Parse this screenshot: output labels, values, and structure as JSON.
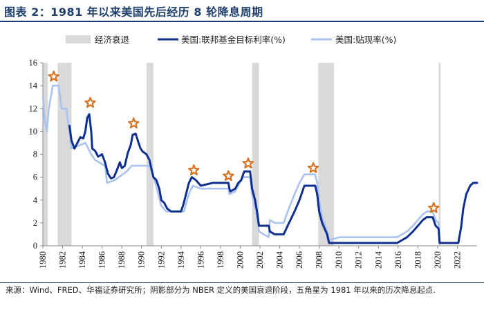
{
  "header": {
    "title": "图表 2：1981 年以来美国先后经历 8 轮降息周期"
  },
  "source": {
    "text": "来源：Wind、FRED、华福证券研究所；阴影部分为 NBER 定义的美国衰退阶段，五角星为 1981 年以来的历次降息起点."
  },
  "colors": {
    "fed_funds": "#0f2f8f",
    "discount": "#a9c2f0",
    "recession": "#d9d9d9",
    "star_fill": "#ffffff",
    "star_stroke": "#d9701f"
  },
  "chart_data": {
    "type": "line",
    "xlim": [
      1980,
      2024
    ],
    "ylim": [
      0,
      16
    ],
    "x_ticks": [
      "1980",
      "1982",
      "1984",
      "1986",
      "1988",
      "1990",
      "1992",
      "1994",
      "1996",
      "1998",
      "2000",
      "2002",
      "2004",
      "2006",
      "2008",
      "2010",
      "2012",
      "2014",
      "2016",
      "2018",
      "2020",
      "2022"
    ],
    "y_ticks": [
      "0",
      "2",
      "4",
      "6",
      "8",
      "10",
      "12",
      "14",
      "16"
    ],
    "legend": [
      {
        "label": "经济衰退",
        "kind": "recession"
      },
      {
        "label": "美国:联邦基金目标利率(%)",
        "kind": "fed_funds"
      },
      {
        "label": "美国:贴现率(%)",
        "kind": "discount"
      }
    ],
    "legend_position": "top",
    "grid": false,
    "recessions": [
      [
        1980.0,
        1980.5
      ],
      [
        1981.5,
        1982.9
      ],
      [
        1990.5,
        1991.2
      ],
      [
        2001.2,
        2001.9
      ],
      [
        2007.9,
        2009.5
      ],
      [
        2020.1,
        2020.3
      ]
    ],
    "series": [
      {
        "name": "美国:联邦基金目标利率(%)",
        "points": [
          [
            1982.7,
            10.5
          ],
          [
            1982.9,
            9.2
          ],
          [
            1983.2,
            8.5
          ],
          [
            1983.5,
            9.0
          ],
          [
            1983.8,
            9.5
          ],
          [
            1984.1,
            9.4
          ],
          [
            1984.3,
            10.0
          ],
          [
            1984.5,
            11.2
          ],
          [
            1984.7,
            11.5
          ],
          [
            1984.9,
            10.0
          ],
          [
            1985.0,
            8.5
          ],
          [
            1985.3,
            8.3
          ],
          [
            1985.6,
            7.8
          ],
          [
            1986.0,
            8.0
          ],
          [
            1986.3,
            7.3
          ],
          [
            1986.6,
            6.3
          ],
          [
            1986.9,
            5.9
          ],
          [
            1987.2,
            6.0
          ],
          [
            1987.5,
            6.6
          ],
          [
            1987.8,
            7.3
          ],
          [
            1988.0,
            6.8
          ],
          [
            1988.3,
            7.0
          ],
          [
            1988.6,
            8.1
          ],
          [
            1988.9,
            8.8
          ],
          [
            1989.1,
            9.7
          ],
          [
            1989.4,
            9.8
          ],
          [
            1989.7,
            9.0
          ],
          [
            1989.9,
            8.5
          ],
          [
            1990.1,
            8.25
          ],
          [
            1990.5,
            8.0
          ],
          [
            1990.8,
            7.5
          ],
          [
            1991.0,
            6.75
          ],
          [
            1991.2,
            6.0
          ],
          [
            1991.5,
            5.75
          ],
          [
            1991.8,
            5.0
          ],
          [
            1992.0,
            4.0
          ],
          [
            1992.3,
            3.75
          ],
          [
            1992.6,
            3.25
          ],
          [
            1993.0,
            3.0
          ],
          [
            1994.0,
            3.0
          ],
          [
            1994.2,
            3.5
          ],
          [
            1994.5,
            4.5
          ],
          [
            1994.8,
            5.5
          ],
          [
            1995.1,
            6.0
          ],
          [
            1995.5,
            5.75
          ],
          [
            1996.0,
            5.25
          ],
          [
            1997.2,
            5.5
          ],
          [
            1998.8,
            5.5
          ],
          [
            1998.9,
            5.0
          ],
          [
            1999.0,
            4.75
          ],
          [
            1999.5,
            5.0
          ],
          [
            1999.8,
            5.5
          ],
          [
            2000.1,
            5.75
          ],
          [
            2000.4,
            6.5
          ],
          [
            2001.0,
            6.5
          ],
          [
            2001.2,
            5.0
          ],
          [
            2001.5,
            4.0
          ],
          [
            2001.7,
            3.0
          ],
          [
            2001.9,
            1.75
          ],
          [
            2002.9,
            1.75
          ],
          [
            2003.0,
            1.25
          ],
          [
            2003.5,
            1.0
          ],
          [
            2004.4,
            1.0
          ],
          [
            2004.8,
            1.75
          ],
          [
            2005.5,
            3.0
          ],
          [
            2006.0,
            4.0
          ],
          [
            2006.5,
            5.25
          ],
          [
            2007.6,
            5.25
          ],
          [
            2007.8,
            4.5
          ],
          [
            2008.0,
            3.0
          ],
          [
            2008.3,
            2.0
          ],
          [
            2008.8,
            1.0
          ],
          [
            2009.0,
            0.25
          ],
          [
            2015.9,
            0.25
          ],
          [
            2016.9,
            0.75
          ],
          [
            2017.5,
            1.25
          ],
          [
            2018.0,
            1.75
          ],
          [
            2018.5,
            2.25
          ],
          [
            2018.9,
            2.5
          ],
          [
            2019.5,
            2.5
          ],
          [
            2019.8,
            1.75
          ],
          [
            2020.1,
            1.5
          ],
          [
            2020.2,
            0.25
          ],
          [
            2022.1,
            0.25
          ],
          [
            2022.4,
            1.75
          ],
          [
            2022.6,
            3.25
          ],
          [
            2022.9,
            4.5
          ],
          [
            2023.3,
            5.25
          ],
          [
            2023.6,
            5.5
          ],
          [
            2024.0,
            5.5
          ]
        ]
      },
      {
        "name": "美国:贴现率(%)",
        "points": [
          [
            1980.0,
            13.0
          ],
          [
            1980.2,
            11.0
          ],
          [
            1980.4,
            10.0
          ],
          [
            1980.6,
            12.0
          ],
          [
            1980.8,
            13.0
          ],
          [
            1981.0,
            14.0
          ],
          [
            1981.6,
            14.0
          ],
          [
            1981.9,
            12.0
          ],
          [
            1982.4,
            12.0
          ],
          [
            1982.6,
            10.5
          ],
          [
            1982.9,
            8.5
          ],
          [
            1984.3,
            9.0
          ],
          [
            1984.9,
            8.0
          ],
          [
            1985.3,
            7.5
          ],
          [
            1986.3,
            7.0
          ],
          [
            1986.5,
            5.5
          ],
          [
            1987.3,
            5.75
          ],
          [
            1987.7,
            6.0
          ],
          [
            1988.5,
            6.5
          ],
          [
            1989.0,
            7.0
          ],
          [
            1990.8,
            7.0
          ],
          [
            1991.0,
            6.5
          ],
          [
            1991.4,
            5.5
          ],
          [
            1992.0,
            3.5
          ],
          [
            1992.5,
            3.0
          ],
          [
            1994.3,
            3.0
          ],
          [
            1994.6,
            4.0
          ],
          [
            1994.9,
            4.75
          ],
          [
            1995.2,
            5.25
          ],
          [
            1996.0,
            5.0
          ],
          [
            1998.8,
            5.0
          ],
          [
            1998.9,
            4.5
          ],
          [
            1999.5,
            4.75
          ],
          [
            1999.8,
            5.25
          ],
          [
            2000.3,
            6.0
          ],
          [
            2001.0,
            6.0
          ],
          [
            2001.2,
            4.5
          ],
          [
            2001.6,
            3.0
          ],
          [
            2001.9,
            1.25
          ],
          [
            2002.9,
            0.75
          ],
          [
            2003.0,
            2.25
          ],
          [
            2003.5,
            2.0
          ],
          [
            2004.4,
            2.0
          ],
          [
            2004.8,
            3.0
          ],
          [
            2005.5,
            4.5
          ],
          [
            2006.0,
            5.5
          ],
          [
            2006.5,
            6.25
          ],
          [
            2007.6,
            6.25
          ],
          [
            2007.8,
            5.5
          ],
          [
            2008.0,
            4.0
          ],
          [
            2008.3,
            2.5
          ],
          [
            2008.8,
            1.25
          ],
          [
            2009.0,
            0.5
          ],
          [
            2010.1,
            0.75
          ],
          [
            2015.9,
            0.75
          ],
          [
            2016.9,
            1.25
          ],
          [
            2017.5,
            1.75
          ],
          [
            2018.0,
            2.25
          ],
          [
            2018.5,
            2.75
          ],
          [
            2018.9,
            3.0
          ],
          [
            2019.5,
            3.0
          ],
          [
            2019.8,
            2.25
          ],
          [
            2020.1,
            2.0
          ],
          [
            2020.2,
            0.25
          ],
          [
            2022.1,
            0.25
          ],
          [
            2022.4,
            1.75
          ],
          [
            2022.6,
            3.25
          ],
          [
            2022.9,
            4.5
          ],
          [
            2023.3,
            5.25
          ],
          [
            2023.6,
            5.5
          ],
          [
            2024.0,
            5.5
          ]
        ]
      }
    ],
    "stars": [
      [
        1981.1,
        14.8
      ],
      [
        1984.8,
        12.5
      ],
      [
        1989.2,
        10.7
      ],
      [
        1995.3,
        6.6
      ],
      [
        1998.8,
        6.1
      ],
      [
        2000.8,
        7.2
      ],
      [
        2007.4,
        6.8
      ],
      [
        2019.6,
        3.3
      ]
    ]
  }
}
